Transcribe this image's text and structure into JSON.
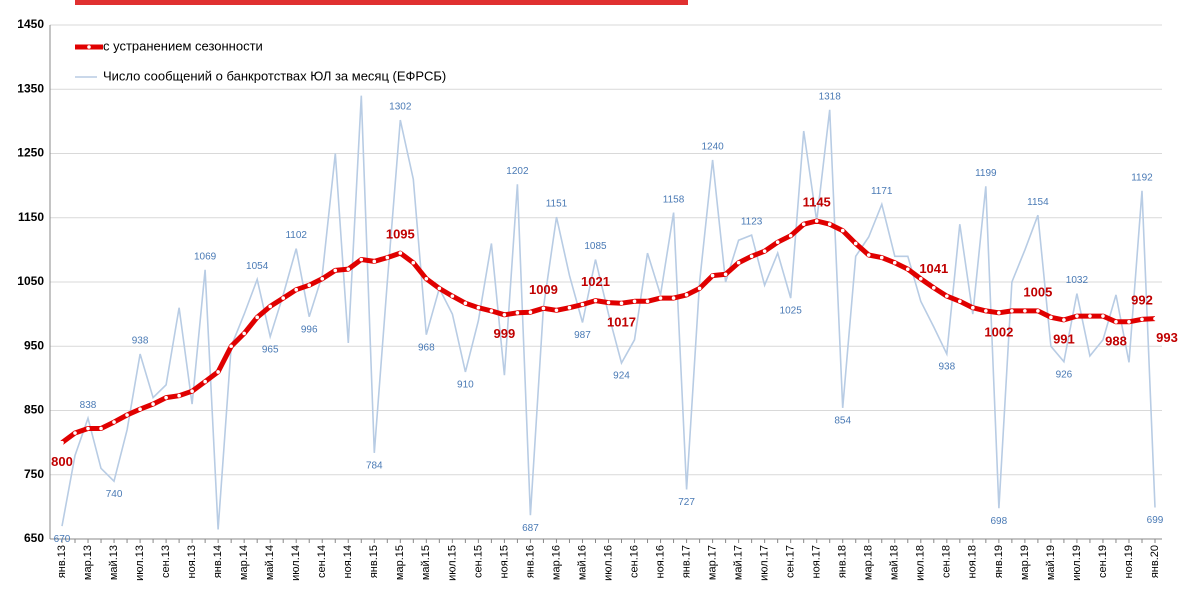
{
  "chart_data": {
    "type": "line",
    "categories": [
      "янв.13",
      null,
      "мар.13",
      null,
      "май.13",
      null,
      "июл.13",
      null,
      "сен.13",
      null,
      "ноя.13",
      null,
      "янв.14",
      null,
      "мар.14",
      null,
      "май.14",
      null,
      "июл.14",
      null,
      "сен.14",
      null,
      "ноя.14",
      null,
      "янв.15",
      null,
      "мар.15",
      null,
      "май.15",
      null,
      "июл.15",
      null,
      "сен.15",
      null,
      "ноя.15",
      null,
      "янв.16",
      null,
      "мар.16",
      null,
      "май.16",
      null,
      "июл.16",
      null,
      "сен.16",
      null,
      "ноя.16",
      null,
      "янв.17",
      null,
      "мар.17",
      null,
      "май.17",
      null,
      "июл.17",
      null,
      "сен.17",
      null,
      "ноя.17",
      null,
      "янв.18",
      null,
      "мар.18",
      null,
      "май.18",
      null,
      "июл.18",
      null,
      "сен.18",
      null,
      "ноя.18",
      null,
      "янв.19",
      null,
      "мар.19",
      null,
      "май.19",
      null,
      "июл.19",
      null,
      "сен.19",
      null,
      "ноя.19",
      null,
      "янв.20"
    ],
    "series": [
      {
        "name": "с устранением сезонности",
        "color": "#e00000",
        "values": [
          800,
          815,
          822,
          822,
          832,
          843,
          852,
          860,
          870,
          873,
          880,
          895,
          910,
          950,
          970,
          995,
          1012,
          1025,
          1038,
          1045,
          1055,
          1068,
          1070,
          1085,
          1082,
          1088,
          1095,
          1080,
          1055,
          1040,
          1028,
          1017,
          1010,
          1005,
          999,
          1002,
          1003,
          1009,
          1006,
          1010,
          1015,
          1021,
          1018,
          1017,
          1020,
          1020,
          1025,
          1025,
          1030,
          1040,
          1060,
          1062,
          1080,
          1090,
          1098,
          1112,
          1122,
          1140,
          1145,
          1140,
          1130,
          1110,
          1092,
          1088,
          1080,
          1070,
          1055,
          1041,
          1028,
          1020,
          1010,
          1005,
          1002,
          1005,
          1005,
          1005,
          995,
          991,
          997,
          997,
          997,
          988,
          988,
          992,
          993
        ],
        "value_labels": [
          "800",
          null,
          null,
          null,
          null,
          null,
          null,
          null,
          null,
          null,
          null,
          null,
          null,
          null,
          null,
          null,
          null,
          null,
          null,
          null,
          null,
          null,
          null,
          null,
          null,
          null,
          "1095",
          null,
          null,
          null,
          null,
          null,
          null,
          null,
          "999",
          null,
          null,
          "1009",
          null,
          null,
          null,
          "1021",
          null,
          "1017",
          null,
          null,
          null,
          null,
          null,
          null,
          null,
          null,
          null,
          null,
          null,
          null,
          null,
          null,
          "1145",
          null,
          null,
          null,
          null,
          null,
          null,
          null,
          null,
          "1041",
          null,
          null,
          null,
          null,
          "1002",
          null,
          null,
          "1005",
          null,
          "991",
          null,
          null,
          null,
          "988",
          null,
          "992",
          "993"
        ]
      },
      {
        "name": "Число сообщений о банкротствах ЮЛ за месяц (ЕФРСБ)",
        "color": "#b8cce4",
        "values": [
          670,
          780,
          838,
          760,
          740,
          820,
          938,
          870,
          890,
          1010,
          860,
          1069,
          665,
          950,
          1000,
          1054,
          965,
          1030,
          1102,
          996,
          1060,
          1250,
          955,
          1340,
          784,
          1050,
          1302,
          1210,
          968,
          1040,
          1000,
          910,
          990,
          1110,
          905,
          1202,
          687,
          1010,
          1151,
          1060,
          987,
          1085,
          1000,
          924,
          960,
          1095,
          1030,
          1158,
          727,
          1050,
          1240,
          1050,
          1115,
          1123,
          1045,
          1095,
          1025,
          1285,
          1145,
          1318,
          854,
          1090,
          1120,
          1171,
          1090,
          1090,
          1020,
          980,
          938,
          1140,
          1000,
          1199,
          698,
          1050,
          1100,
          1154,
          950,
          926,
          1032,
          935,
          960,
          1030,
          925,
          1192,
          699
        ],
        "value_labels": [
          "670",
          null,
          "838",
          null,
          "740",
          null,
          "938",
          null,
          null,
          null,
          null,
          "1069",
          null,
          null,
          null,
          "1054",
          "965",
          null,
          "1102",
          "996",
          null,
          null,
          null,
          null,
          "784",
          null,
          "1302",
          null,
          "968",
          null,
          null,
          "910",
          null,
          null,
          null,
          "1202",
          "687",
          null,
          "1151",
          null,
          "987",
          "1085",
          null,
          "924",
          null,
          null,
          null,
          "1158",
          "727",
          null,
          "1240",
          null,
          null,
          "1123",
          null,
          null,
          "1025",
          null,
          null,
          "1318",
          "854",
          null,
          null,
          "1171",
          null,
          null,
          null,
          null,
          "938",
          null,
          null,
          "1199",
          "698",
          null,
          null,
          "1154",
          null,
          "926",
          "1032",
          null,
          null,
          null,
          null,
          "1192",
          "699"
        ]
      }
    ],
    "ylim": [
      650,
      1450
    ],
    "yticks": [
      650,
      750,
      850,
      950,
      1050,
      1150,
      1250,
      1350,
      1450
    ],
    "grid": true,
    "legend": "top-left"
  }
}
